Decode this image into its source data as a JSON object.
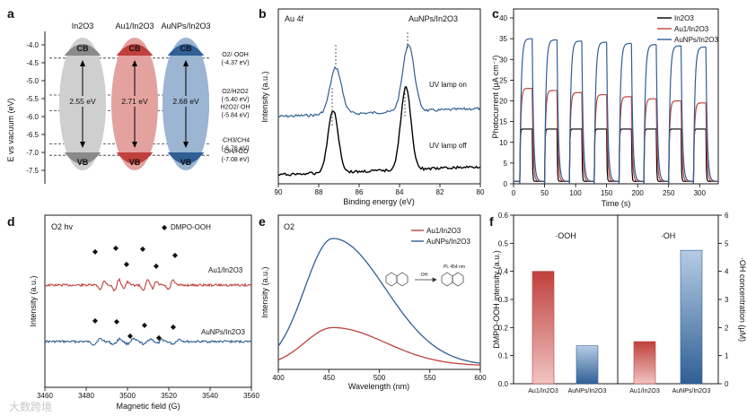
{
  "figure": {
    "panels": [
      "a",
      "b",
      "c",
      "d",
      "e",
      "f"
    ],
    "watermark": "大数跨境"
  },
  "panel_a": {
    "letter": "a",
    "ylabel": "E vs vacuum (eV)",
    "yticks": [
      "-4.0",
      "-4.5",
      "-5.0",
      "-5.5",
      "-6.0",
      "-6.5",
      "-7.0",
      "-7.5"
    ],
    "columns": [
      {
        "name": "In2O3",
        "gap": "2.55 eV",
        "cb": "CB",
        "vb": "VB",
        "color": "#cfcfcf",
        "cb_color": "#8a8a8a",
        "vb_color": "#8a8a8a"
      },
      {
        "name": "Au1/In2O3",
        "gap": "2.71 eV",
        "cb": "CB",
        "vb": "VB",
        "color": "#e4a29f",
        "cb_color": "#c0403c",
        "vb_color": "#c0403c"
      },
      {
        "name": "AuNPs/In2O3",
        "gap": "2.68 eV",
        "cb": "CB",
        "vb": "VB",
        "color": "#9bb5d2",
        "cb_color": "#2f5f95",
        "vb_color": "#2f5f95"
      }
    ],
    "levels": [
      {
        "label": "O2/·OOH",
        "value": "(-4.37 eV)",
        "e": -4.37
      },
      {
        "label": "O2/H2O2",
        "value": "(-5.40 eV)",
        "e": -5.4
      },
      {
        "label": "H2O2/·OH",
        "value": "(-5.84 eV)",
        "e": -5.84
      },
      {
        "label": "·CH3/CH4",
        "value": "(-6.76 eV)",
        "e": -6.76
      },
      {
        "label": "·OH/H2O",
        "value": "(-7.08 eV)",
        "e": -7.08
      }
    ]
  },
  "panel_b": {
    "letter": "b",
    "title_left": "Au 4f",
    "title_right": "AuNPs/In2O3",
    "xlabel": "Binding energy (eV)",
    "ylabel": "Intensity (a.u.)",
    "xticks": [
      "90",
      "88",
      "86",
      "84",
      "82",
      "80"
    ],
    "labels": [
      "UV lamp on",
      "UV lamp off"
    ],
    "colors": {
      "on": "#2f5f95",
      "off": "#000000"
    }
  },
  "panel_c": {
    "letter": "c",
    "ylabel": "Photocurrent (μA cm⁻²)",
    "xlabel": "Time (s)",
    "yticks": [
      "0",
      "5",
      "10",
      "15",
      "20",
      "25",
      "30",
      "35",
      "40"
    ],
    "xticks": [
      "0",
      "50",
      "100",
      "150",
      "200",
      "250",
      "300"
    ],
    "legend": [
      {
        "name": "In2O3",
        "color": "#000000"
      },
      {
        "name": "Au1/In2O3",
        "color": "#c0403c"
      },
      {
        "name": "AuNPs/In2O3",
        "color": "#2f5f95"
      }
    ]
  },
  "panel_d": {
    "letter": "d",
    "title": "O2 hv",
    "legend": "DMPO-OOH",
    "xlabel": "Magnetic field (G)",
    "ylabel": "Intensity (a.u.)",
    "xticks": [
      "3460",
      "3480",
      "3500",
      "3520",
      "3540",
      "3560"
    ],
    "labels": [
      "Au1/In2O3",
      "AuNPs/In2O3"
    ]
  },
  "panel_e": {
    "letter": "e",
    "title": "O2",
    "xlabel": "Wavelength (nm)",
    "ylabel": "Intensity (a.u.)",
    "xticks": [
      "400",
      "450",
      "500",
      "550",
      "600"
    ],
    "legend": [
      {
        "name": "Au1/In2O3",
        "color": "#c0403c"
      },
      {
        "name": "AuNPs/In2O3",
        "color": "#2f5f95"
      }
    ],
    "inset_label": "PL 454 nm",
    "inset_arrow_label": "·OH"
  },
  "panel_f": {
    "letter": "f",
    "ylabel_left": "DMPO-OOH intensity (a.u.)",
    "ylabel_right": "·OH concentration (μM)",
    "section_left": "·OOH",
    "section_right": "·OH",
    "yticks_left": [
      "0.0",
      "0.1",
      "0.2",
      "0.3",
      "0.4",
      "0.5",
      "0.6"
    ],
    "yticks_right": [
      "0",
      "1",
      "2",
      "3",
      "4",
      "5",
      "6"
    ],
    "categories": [
      "Au1/In2O3",
      "AuNPs/In2O3",
      "Au1/In2O3",
      "AuNPs/In2O3"
    ]
  },
  "chart_data": [
    {
      "type": "line",
      "panel": "c",
      "xlabel": "Time (s)",
      "ylabel": "Photocurrent (μA cm⁻²)",
      "xlim": [
        0,
        330
      ],
      "ylim": [
        0,
        40
      ],
      "series": [
        {
          "name": "In2O3",
          "on_level": 13.2
        },
        {
          "name": "Au1/In2O3",
          "on_level_start": 23,
          "on_level_end": 19.5
        },
        {
          "name": "AuNPs/In2O3",
          "on_level_start": 35,
          "on_level_end": 33
        }
      ]
    },
    {
      "type": "bar",
      "panel": "f",
      "categories": [
        "Au1/In2O3",
        "AuNPs/In2O3",
        "Au1/In2O3",
        "AuNPs/In2O3"
      ],
      "series": [
        {
          "name": "·OOH",
          "values": [
            0.4,
            0.135,
            null,
            null
          ]
        },
        {
          "name": "·OH",
          "values": [
            null,
            null,
            1.5,
            4.75
          ]
        }
      ],
      "ylim_left": [
        0,
        0.6
      ],
      "ylim_right": [
        0,
        6
      ]
    },
    {
      "type": "line",
      "panel": "e",
      "xlabel": "Wavelength (nm)",
      "xlim": [
        400,
        600
      ],
      "series": [
        {
          "name": "Au1/In2O3",
          "peak_x": 454,
          "peak_rel": 0.3
        },
        {
          "name": "AuNPs/In2O3",
          "peak_x": 454,
          "peak_rel": 1.0
        }
      ]
    }
  ]
}
